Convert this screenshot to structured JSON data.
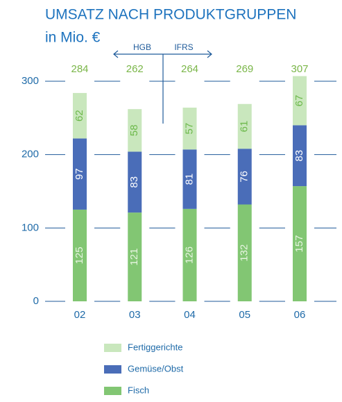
{
  "chart_data": {
    "type": "stacked_bar",
    "title": "UMSATZ NACH PRODUKTGRUPPEN",
    "subtitle": "in Mio. €",
    "annotations": [
      "HGB",
      "IFRS"
    ],
    "categories": [
      "02",
      "03",
      "04",
      "05",
      "06"
    ],
    "series": [
      {
        "name": "Fisch",
        "color": "#82c673",
        "label_color": "#e8f5e2",
        "values": [
          125,
          121,
          126,
          132,
          157
        ]
      },
      {
        "name": "Gemüse/Obst",
        "color": "#4a6db8",
        "label_color": "#ffffff",
        "values": [
          97,
          83,
          81,
          76,
          83
        ]
      },
      {
        "name": "Fertiggerichte",
        "color": "#c9e7bd",
        "label_color": "#6cb84a",
        "values": [
          62,
          58,
          57,
          61,
          67
        ]
      }
    ],
    "totals": [
      284,
      262,
      264,
      269,
      307
    ],
    "ylim": [
      0,
      300
    ],
    "yticks": [
      0,
      100,
      200,
      300
    ],
    "grid": true
  }
}
